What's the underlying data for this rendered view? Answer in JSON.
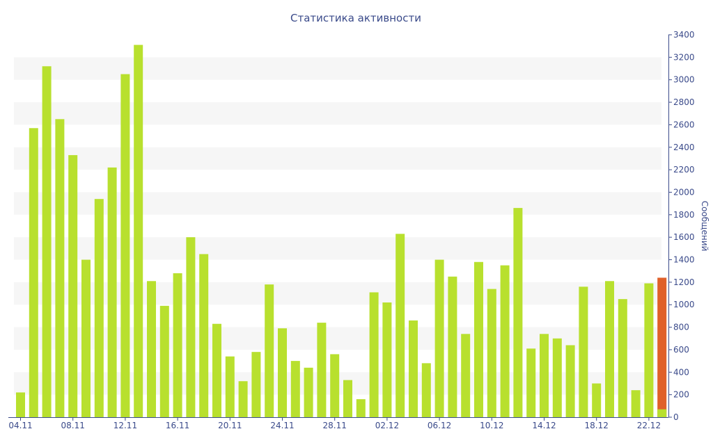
{
  "chart_data": {
    "type": "bar",
    "title": "Статистика активности",
    "ylabel": "Сообщений",
    "xlabel": "",
    "ylim": [
      0,
      3400
    ],
    "yticks": [
      0,
      200,
      400,
      600,
      800,
      1000,
      1200,
      1400,
      1600,
      1800,
      2000,
      2200,
      2400,
      2600,
      2800,
      3000,
      3200,
      3400
    ],
    "y_axis_side": "right",
    "xtick_labels": [
      "04.11",
      "08.11",
      "12.11",
      "16.11",
      "20.11",
      "24.11",
      "28.11",
      "02.12",
      "06.12",
      "10.12",
      "14.12",
      "18.12",
      "22.12"
    ],
    "categories": [
      "04.11",
      "05.11",
      "06.11",
      "07.11",
      "08.11",
      "09.11",
      "10.11",
      "11.11",
      "12.11",
      "13.11",
      "14.11",
      "15.11",
      "16.11",
      "17.11",
      "18.11",
      "19.11",
      "20.11",
      "21.11",
      "22.11",
      "23.11",
      "24.11",
      "25.11",
      "26.11",
      "27.11",
      "28.11",
      "29.11",
      "30.11",
      "01.12",
      "02.12",
      "03.12",
      "04.12",
      "05.12",
      "06.12",
      "07.12",
      "08.12",
      "09.12",
      "10.12",
      "11.12",
      "12.12",
      "13.12",
      "14.12",
      "15.12",
      "16.12",
      "17.12",
      "18.12",
      "19.12",
      "20.12",
      "21.12",
      "22.12",
      "23.12"
    ],
    "values": [
      220,
      2570,
      3120,
      2650,
      2330,
      1400,
      1940,
      2220,
      3050,
      3310,
      1210,
      990,
      1280,
      1600,
      1450,
      830,
      540,
      320,
      580,
      1180,
      790,
      500,
      440,
      840,
      560,
      330,
      160,
      1110,
      1020,
      1630,
      860,
      480,
      1400,
      1250,
      740,
      1380,
      1140,
      1350,
      1860,
      610,
      740,
      700,
      640,
      1160,
      300,
      1210,
      1050,
      240,
      1190,
      1240
    ],
    "bar_color": "#b8e02e",
    "highlight": {
      "index": 49,
      "value": 1240,
      "base_value": 1190,
      "color": "#e0602a",
      "base_color": "#b8e02e"
    },
    "band_color": "#f6f6f6",
    "axis_color": "#3a4a8a"
  }
}
